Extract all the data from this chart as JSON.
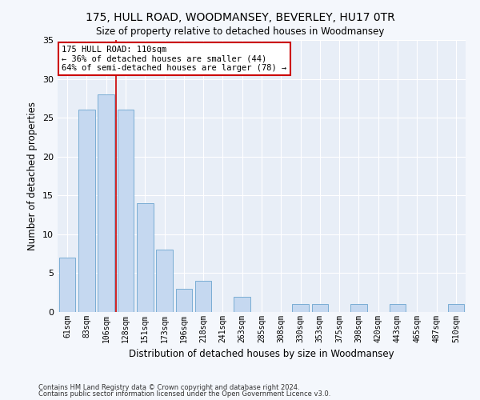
{
  "title": "175, HULL ROAD, WOODMANSEY, BEVERLEY, HU17 0TR",
  "subtitle": "Size of property relative to detached houses in Woodmansey",
  "xlabel": "Distribution of detached houses by size in Woodmansey",
  "ylabel": "Number of detached properties",
  "categories": [
    "61sqm",
    "83sqm",
    "106sqm",
    "128sqm",
    "151sqm",
    "173sqm",
    "196sqm",
    "218sqm",
    "241sqm",
    "263sqm",
    "285sqm",
    "308sqm",
    "330sqm",
    "353sqm",
    "375sqm",
    "398sqm",
    "420sqm",
    "443sqm",
    "465sqm",
    "487sqm",
    "510sqm"
  ],
  "values": [
    7,
    26,
    28,
    26,
    14,
    8,
    3,
    4,
    0,
    2,
    0,
    0,
    1,
    1,
    0,
    1,
    0,
    1,
    0,
    0,
    1
  ],
  "bar_color": "#c5d8f0",
  "bar_edge_color": "#7aadd4",
  "vline_x": 2.5,
  "vline_color": "#cc0000",
  "annotation_text": "175 HULL ROAD: 110sqm\n← 36% of detached houses are smaller (44)\n64% of semi-detached houses are larger (78) →",
  "annotation_box_color": "#ffffff",
  "annotation_box_edge_color": "#cc0000",
  "ylim": [
    0,
    35
  ],
  "yticks": [
    0,
    5,
    10,
    15,
    20,
    25,
    30,
    35
  ],
  "fig_bg_color": "#f4f7fc",
  "ax_bg_color": "#e8eef7",
  "grid_color": "#ffffff",
  "footnote1": "Contains HM Land Registry data © Crown copyright and database right 2024.",
  "footnote2": "Contains public sector information licensed under the Open Government Licence v3.0."
}
